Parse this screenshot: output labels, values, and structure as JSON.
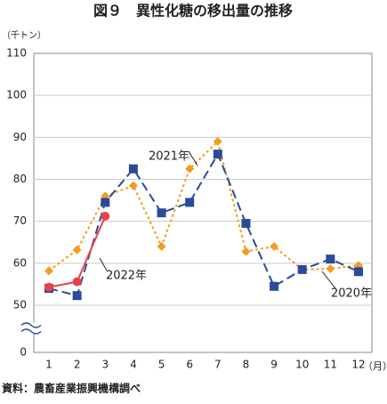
{
  "chart_data": {
    "type": "line",
    "title": "図９　異性化糖の移出量の推移",
    "y_label": "（千トン）",
    "x_label": "（月）",
    "source": "資料：農畜産業振興機構調べ",
    "categories": [
      "1",
      "2",
      "3",
      "4",
      "5",
      "6",
      "7",
      "8",
      "9",
      "10",
      "11",
      "12"
    ],
    "series": [
      {
        "name": "2020年",
        "color": "#f39c1e",
        "marker": "diamond",
        "dash": "3,3",
        "values": [
          58.2,
          63.2,
          76,
          78.5,
          64,
          82.5,
          89,
          62.8,
          64,
          58.5,
          58.7,
          59.5
        ]
      },
      {
        "name": "2021年",
        "color": "#2a4a9a",
        "marker": "square",
        "dash": "10,5",
        "values": [
          54,
          52.3,
          74.5,
          82.5,
          72,
          74.5,
          86,
          69.5,
          54.5,
          58.5,
          61,
          58
        ]
      },
      {
        "name": "2022年",
        "color": "#e8434b",
        "marker": "circle",
        "dash": "",
        "values": [
          54.3,
          55.6,
          71.2,
          null,
          null,
          null,
          null,
          null,
          null,
          null,
          null,
          null
        ]
      }
    ],
    "ylim": [
      0,
      110
    ],
    "yticks": [
      0,
      50,
      60,
      70,
      80,
      90,
      100,
      110
    ],
    "axis_break": [
      0,
      50
    ],
    "grid": true
  }
}
